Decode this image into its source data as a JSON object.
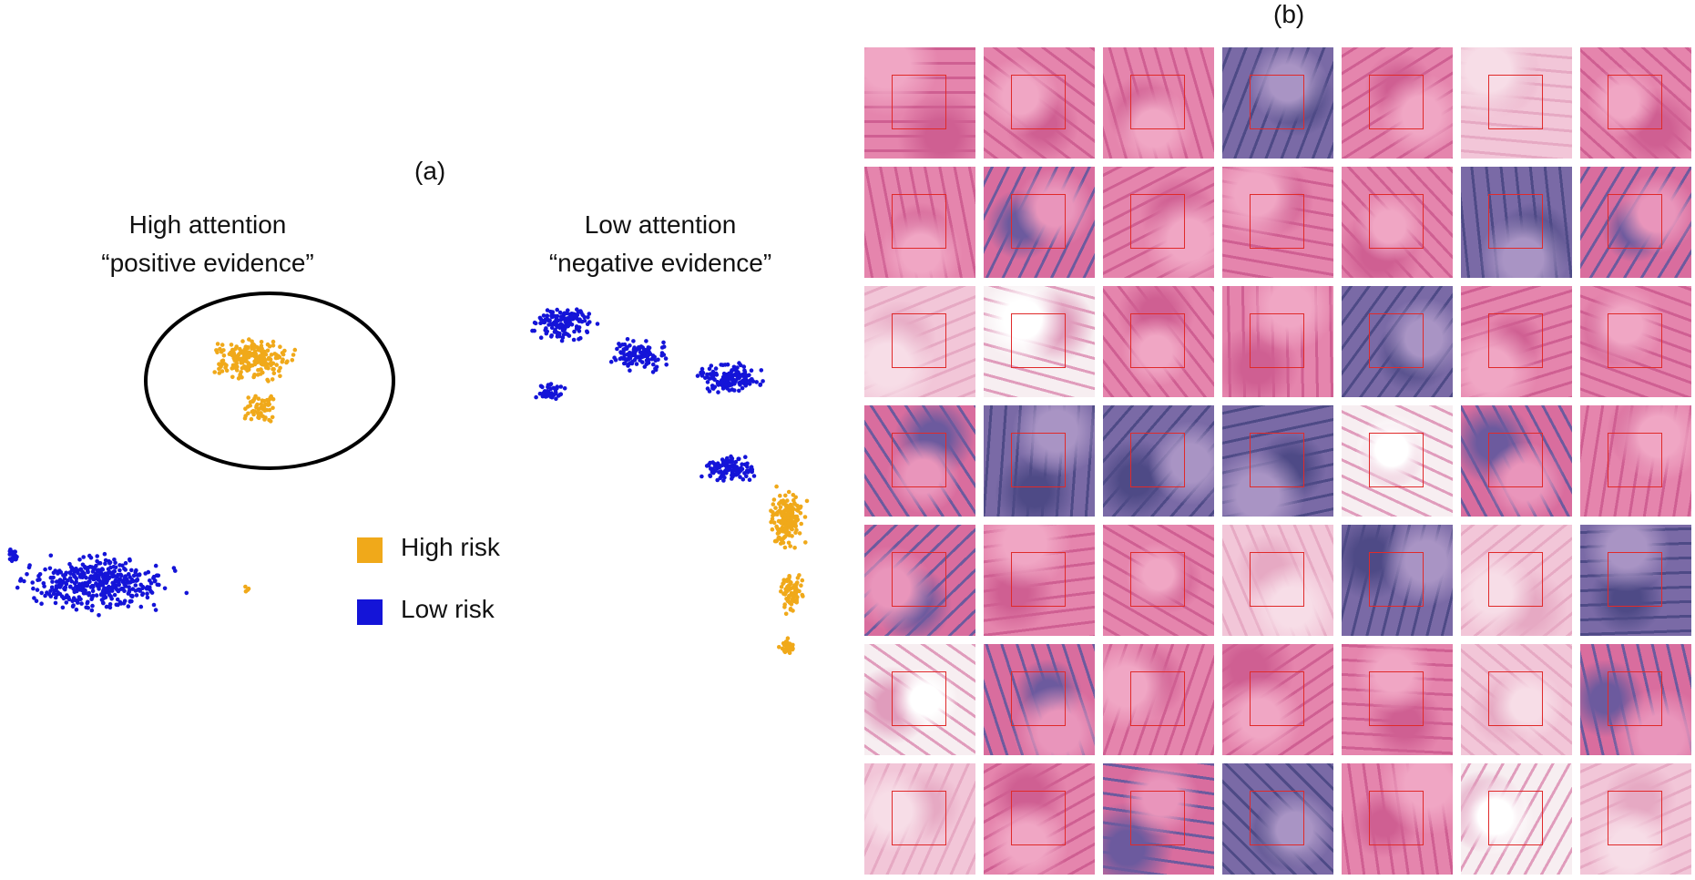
{
  "panel_a_label": "(a)",
  "panel_b_label": "(b)",
  "high_attention": {
    "line1": "High attention",
    "line2": "“positive evidence”"
  },
  "low_attention": {
    "line1": "Low attention",
    "line2": "“negative evidence”"
  },
  "legend": [
    {
      "label": "High risk",
      "color": "#f0a91a"
    },
    {
      "label": "Low risk",
      "color": "#1414d8"
    }
  ],
  "colors": {
    "high_risk": "#f0a91a",
    "low_risk": "#1414d8",
    "inset_box": "#e02a2a",
    "tissue_pink": "#e07fa8",
    "tissue_purple": "#6a5a9a",
    "background": "#ffffff"
  },
  "chart_data": {
    "type": "scatter",
    "title": "",
    "xlabel": "",
    "ylabel": "",
    "grid": false,
    "legend_placement": "center",
    "series": [
      {
        "name": "High risk",
        "color": "#f0a91a"
      },
      {
        "name": "Low risk",
        "color": "#1414d8"
      }
    ]
  },
  "patch_grid": {
    "rows": 7,
    "cols": 7,
    "tiles": [
      "p",
      "p",
      "p",
      "u",
      "p",
      "lp",
      "p",
      "p",
      "m",
      "p",
      "p",
      "p",
      "u",
      "m",
      "lp",
      "w",
      "p",
      "p",
      "u",
      "p",
      "p",
      "m",
      "u",
      "u",
      "u",
      "w",
      "m",
      "p",
      "m",
      "p",
      "p",
      "lp",
      "u",
      "lp",
      "u",
      "w",
      "m",
      "p",
      "p",
      "p",
      "lp",
      "m",
      "lp",
      "p",
      "m",
      "u",
      "p",
      "w",
      "lp"
    ]
  }
}
